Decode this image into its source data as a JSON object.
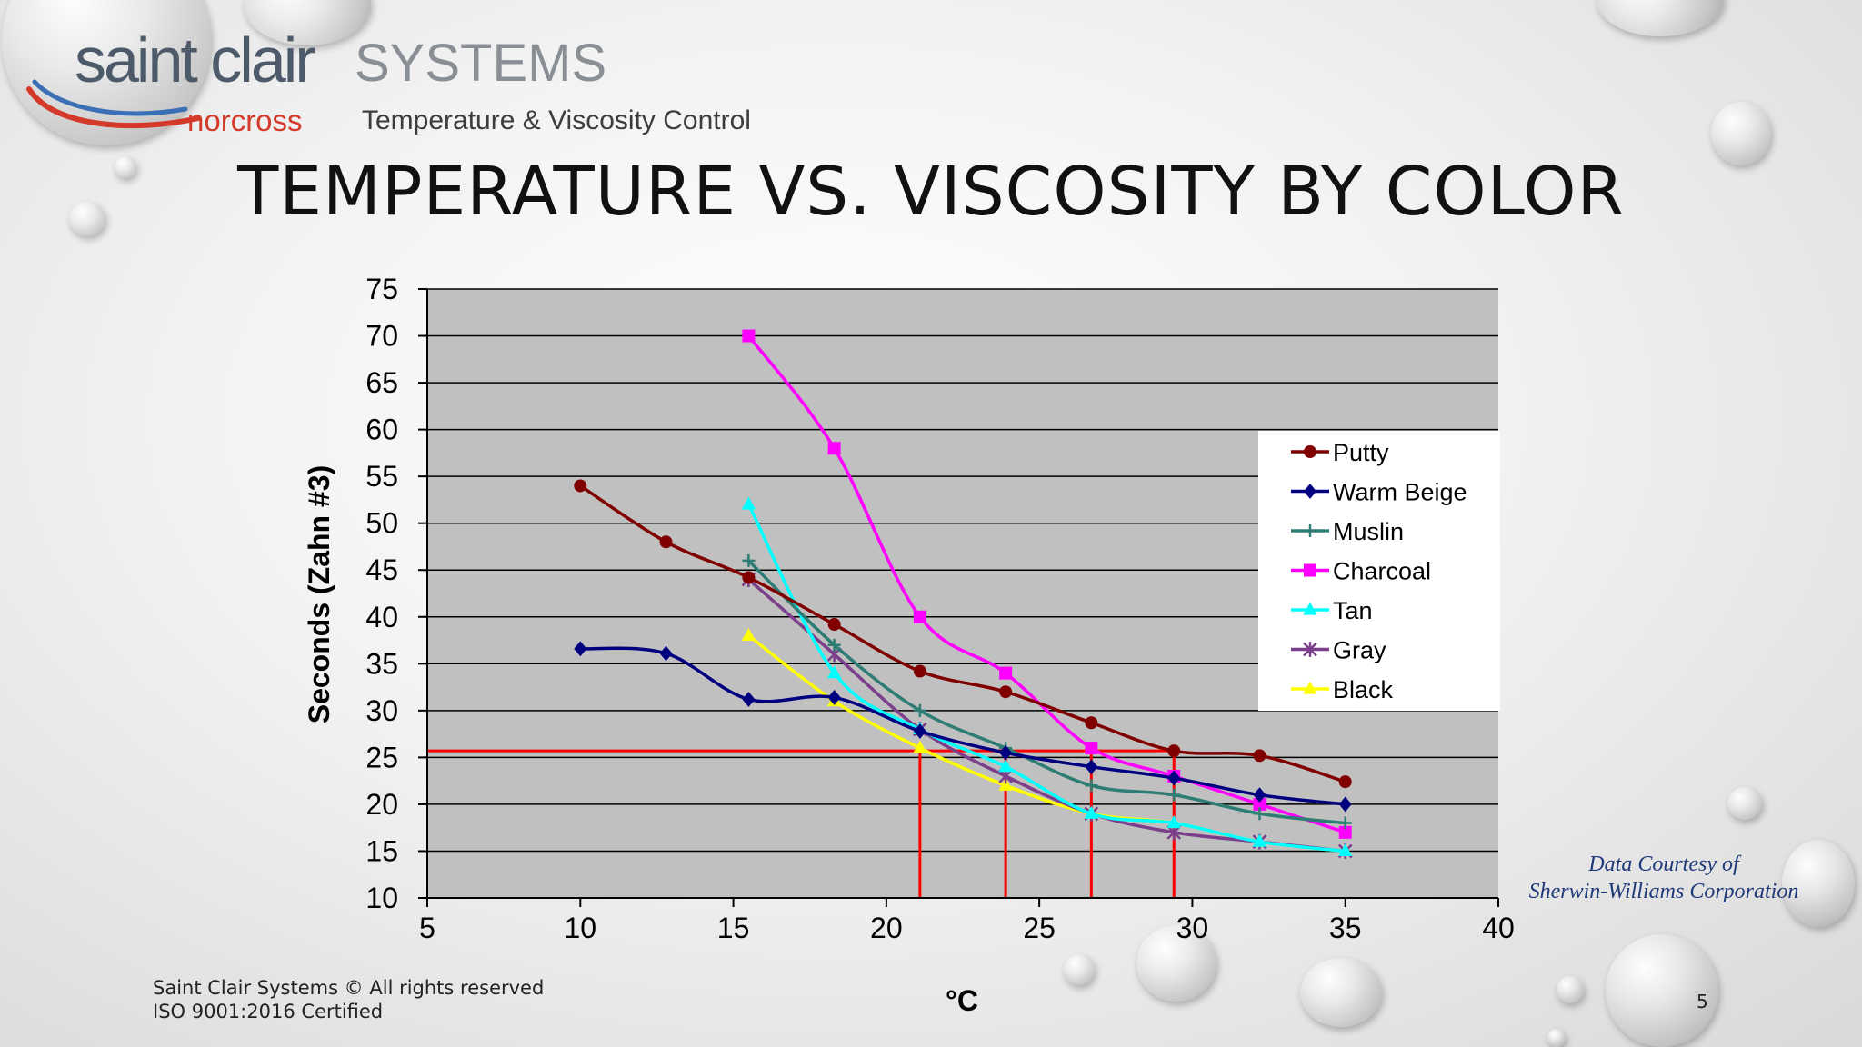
{
  "logo": {
    "brand": "saint clair",
    "brand_suffix": "SYSTEMS",
    "sub_brand": "norcross",
    "tagline": "Temperature & Viscosity Control"
  },
  "slide": {
    "title": "TEMPERATURE VS. VISCOSITY BY COLOR",
    "credit_line1": "Data Courtesy of",
    "credit_line2": "Sherwin-Williams Corporation",
    "footer_copyright": "Saint Clair Systems © All rights reserved",
    "footer_iso": "ISO 9001:2016 Certified",
    "page_number": "5"
  },
  "colors": {
    "plot_background": "#c0c0c0",
    "reference_lines": "#ff0000"
  },
  "chart_data": {
    "type": "line",
    "title": "",
    "xlabel": "°C",
    "ylabel": "Seconds (Zahn #3)",
    "xlim": [
      5,
      40
    ],
    "ylim": [
      10,
      75
    ],
    "x_ticks": [
      "5",
      "10",
      "15",
      "20",
      "25",
      "30",
      "35",
      "40"
    ],
    "y_ticks": [
      "10",
      "15",
      "20",
      "25",
      "30",
      "35",
      "40",
      "45",
      "50",
      "55",
      "60",
      "65",
      "70",
      "75"
    ],
    "grid": "horizontal",
    "legend_position": "right",
    "series": [
      {
        "name": "Putty",
        "color": "#800000",
        "marker": "circle",
        "x": [
          10,
          12.8,
          15.5,
          18.3,
          21.1,
          23.9,
          26.7,
          29.4,
          32.2,
          35
        ],
        "y": [
          54,
          48,
          44.2,
          39.2,
          34.2,
          32,
          28.7,
          25.7,
          25.2,
          22.4
        ]
      },
      {
        "name": "Warm Beige",
        "color": "#000080",
        "marker": "diamond",
        "x": [
          10,
          12.8,
          15.5,
          18.3,
          21.1,
          23.9,
          26.7,
          29.4,
          32.2,
          35
        ],
        "y": [
          36.6,
          36.1,
          31.2,
          31.4,
          27.8,
          25.5,
          24,
          22.8,
          21,
          20
        ]
      },
      {
        "name": "Muslin",
        "color": "#2e7d74",
        "marker": "plus",
        "x": [
          15.5,
          18.3,
          21.1,
          23.9,
          26.7,
          29.4,
          32.2,
          35
        ],
        "y": [
          46,
          37,
          30,
          26,
          22,
          21,
          19,
          18
        ]
      },
      {
        "name": "Charcoal",
        "color": "#ff00ff",
        "marker": "square",
        "x": [
          15.5,
          18.3,
          21.1,
          23.9,
          26.7,
          29.4,
          32.2,
          35
        ],
        "y": [
          70,
          58,
          40,
          34,
          26,
          23,
          20,
          17
        ]
      },
      {
        "name": "Tan",
        "color": "#00ffff",
        "marker": "triangle",
        "x": [
          15.5,
          18.3,
          21.1,
          23.9,
          26.7,
          29.4,
          32.2,
          35
        ],
        "y": [
          52,
          34,
          28,
          24,
          19,
          18,
          16,
          15
        ]
      },
      {
        "name": "Gray",
        "color": "#7b3f8c",
        "marker": "star",
        "x": [
          15.5,
          18.3,
          21.1,
          23.9,
          26.7,
          29.4,
          32.2,
          35
        ],
        "y": [
          44,
          36,
          28,
          23,
          19,
          17,
          16,
          15
        ]
      },
      {
        "name": "Black",
        "color": "#ffff00",
        "marker": "triangle",
        "x": [
          15.5,
          18.3,
          21.1,
          23.9,
          26.7,
          29.4,
          32.2,
          35
        ],
        "y": [
          38,
          31,
          26,
          22,
          19,
          18,
          16,
          15
        ]
      }
    ],
    "reference_lines": {
      "horizontal_y": 25.7,
      "vertical_x": [
        21.1,
        23.9,
        26.7,
        29.4
      ]
    }
  }
}
